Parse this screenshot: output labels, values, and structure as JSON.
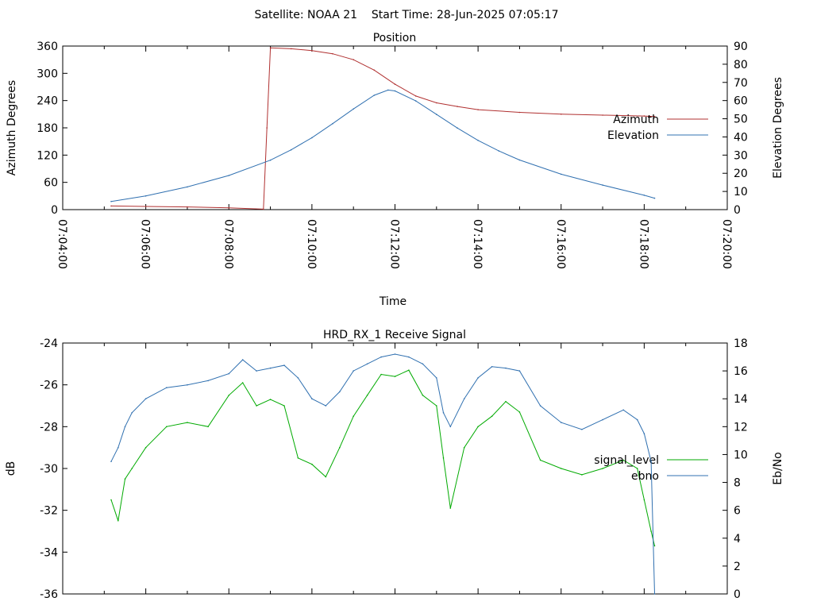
{
  "header": {
    "title": "Satellite: NOAA 21    Start Time: 28-Jun-2025 07:05:17"
  },
  "colors": {
    "azimuth": "#b03030",
    "elevation": "#3070b0",
    "signal_level": "#00aa00",
    "ebno": "#3070b0",
    "frame": "#000000"
  },
  "chart_data": [
    {
      "type": "line",
      "title": "Position",
      "xlabel": "Time",
      "ylabel": "Azimuth Degrees",
      "y2label": "Elevation Degrees",
      "xlim": [
        "07:04:00",
        "07:20:00"
      ],
      "ylim": [
        0,
        360
      ],
      "y2lim": [
        0,
        90
      ],
      "x_ticks": [
        "07:04:00",
        "07:06:00",
        "07:08:00",
        "07:10:00",
        "07:12:00",
        "07:14:00",
        "07:16:00",
        "07:18:00",
        "07:20:00"
      ],
      "y_ticks": [
        0,
        60,
        120,
        180,
        240,
        300,
        360
      ],
      "y2_ticks": [
        0,
        10,
        20,
        30,
        40,
        50,
        60,
        70,
        80,
        90
      ],
      "legend": "right",
      "grid": false,
      "series": [
        {
          "name": "Azimuth",
          "axis": "y",
          "x": [
            "07:05:10",
            "07:06:00",
            "07:07:00",
            "07:08:00",
            "07:08:50",
            "07:08:55",
            "07:09:00",
            "07:09:30",
            "07:10:00",
            "07:10:30",
            "07:11:00",
            "07:11:30",
            "07:12:00",
            "07:12:30",
            "07:13:00",
            "07:13:30",
            "07:14:00",
            "07:15:00",
            "07:16:00",
            "07:17:00",
            "07:18:00",
            "07:18:15"
          ],
          "values": [
            8,
            7,
            6,
            4,
            1,
            180,
            356,
            354,
            350,
            343,
            330,
            307,
            276,
            250,
            235,
            227,
            220,
            214,
            210,
            208,
            206,
            205
          ]
        },
        {
          "name": "Elevation",
          "axis": "y2",
          "x": [
            "07:05:10",
            "07:06:00",
            "07:07:00",
            "07:08:00",
            "07:09:00",
            "07:09:30",
            "07:10:00",
            "07:10:30",
            "07:11:00",
            "07:11:30",
            "07:11:50",
            "07:12:00",
            "07:12:30",
            "07:13:00",
            "07:13:30",
            "07:14:00",
            "07:14:30",
            "07:15:00",
            "07:16:00",
            "07:17:00",
            "07:18:00",
            "07:18:15"
          ],
          "values": [
            4.5,
            7.5,
            12.5,
            18.8,
            27.2,
            32.9,
            39.6,
            47.3,
            55.4,
            62.9,
            65.8,
            65.3,
            59.8,
            52.4,
            44.9,
            38.1,
            32.3,
            27.3,
            19.5,
            13.5,
            7.9,
            6.3
          ]
        }
      ]
    },
    {
      "type": "line",
      "title": "HRD_RX_1 Receive Signal",
      "ylabel": "dB",
      "y2label": "Eb/No",
      "xlim": [
        "07:04:00",
        "07:20:00"
      ],
      "ylim": [
        -36,
        -24
      ],
      "y2lim": [
        0,
        18
      ],
      "y_ticks": [
        -24,
        -26,
        -28,
        -30,
        -32,
        -34,
        -36
      ],
      "y2_ticks": [
        0,
        2,
        4,
        6,
        8,
        10,
        12,
        14,
        16,
        18
      ],
      "legend": "right",
      "grid": false,
      "series": [
        {
          "name": "signal_level",
          "axis": "y",
          "x": [
            "07:05:10",
            "07:05:20",
            "07:05:30",
            "07:05:40",
            "07:06:00",
            "07:06:30",
            "07:07:00",
            "07:07:30",
            "07:08:00",
            "07:08:20",
            "07:08:40",
            "07:09:00",
            "07:09:20",
            "07:09:40",
            "07:10:00",
            "07:10:20",
            "07:10:40",
            "07:11:00",
            "07:11:20",
            "07:11:40",
            "07:12:00",
            "07:12:20",
            "07:12:40",
            "07:13:00",
            "07:13:10",
            "07:13:20",
            "07:13:40",
            "07:14:00",
            "07:14:20",
            "07:14:40",
            "07:15:00",
            "07:15:30",
            "07:16:00",
            "07:16:30",
            "07:17:00",
            "07:17:30",
            "07:17:50",
            "07:18:00",
            "07:18:10",
            "07:18:15"
          ],
          "values": [
            -31.5,
            -32.5,
            -30.5,
            -30.0,
            -29.0,
            -28.0,
            -27.8,
            -28.0,
            -26.5,
            -25.9,
            -27.0,
            -26.7,
            -27.0,
            -29.5,
            -29.8,
            -30.4,
            -29.0,
            -27.5,
            -26.5,
            -25.5,
            -25.6,
            -25.3,
            -26.5,
            -27.0,
            -29.5,
            -31.9,
            -29.0,
            -28.0,
            -27.5,
            -26.8,
            -27.3,
            -29.6,
            -30.0,
            -30.3,
            -30.0,
            -29.6,
            -30.0,
            -31.5,
            -33.0,
            -33.7
          ]
        },
        {
          "name": "ebno",
          "axis": "y2",
          "x": [
            "07:05:10",
            "07:05:20",
            "07:05:30",
            "07:05:40",
            "07:06:00",
            "07:06:30",
            "07:07:00",
            "07:07:30",
            "07:08:00",
            "07:08:20",
            "07:08:40",
            "07:09:00",
            "07:09:20",
            "07:09:40",
            "07:10:00",
            "07:10:20",
            "07:10:40",
            "07:11:00",
            "07:11:20",
            "07:11:40",
            "07:12:00",
            "07:12:20",
            "07:12:40",
            "07:13:00",
            "07:13:10",
            "07:13:20",
            "07:13:40",
            "07:14:00",
            "07:14:20",
            "07:14:40",
            "07:15:00",
            "07:15:30",
            "07:16:00",
            "07:16:30",
            "07:17:00",
            "07:17:30",
            "07:17:50",
            "07:18:00",
            "07:18:10",
            "07:18:15"
          ],
          "values": [
            9.5,
            10.5,
            12.0,
            13.0,
            14.0,
            14.8,
            15.0,
            15.3,
            15.8,
            16.8,
            16.0,
            16.2,
            16.4,
            15.5,
            14.0,
            13.5,
            14.5,
            16.0,
            16.5,
            17.0,
            17.2,
            17.0,
            16.5,
            15.5,
            13.0,
            12.0,
            14.0,
            15.5,
            16.3,
            16.2,
            16.0,
            13.5,
            12.3,
            11.8,
            12.5,
            13.2,
            12.5,
            11.5,
            9.5,
            0
          ]
        }
      ]
    }
  ]
}
